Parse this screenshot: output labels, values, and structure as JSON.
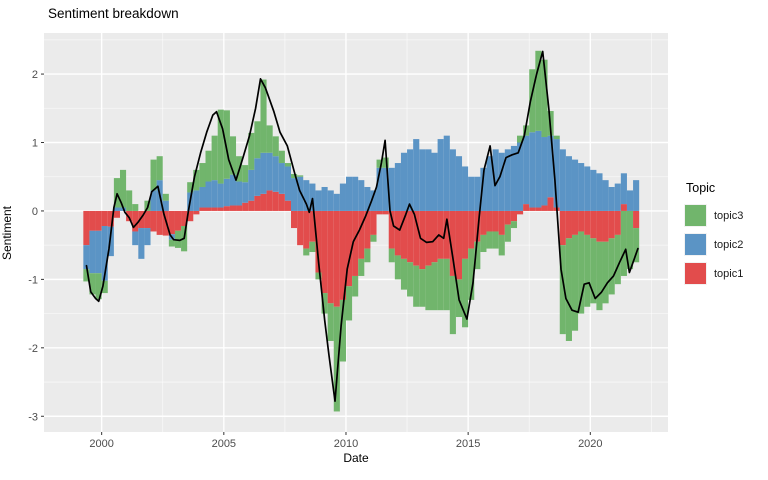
{
  "title": "Sentiment breakdown",
  "colors": {
    "panel_bg": "#EBEBEB",
    "grid": "#FFFFFF",
    "line": "#000000",
    "tick_text": "#4D4D4D",
    "tick_mark": "#333333",
    "topic1": "#E24C4C",
    "topic2": "#5B94C5",
    "topic3": "#71B56C"
  },
  "chart_data": {
    "type": "bar",
    "subtype": "stacked-bar-with-line-overlay",
    "title": "Sentiment breakdown",
    "xlabel": "Date",
    "ylabel": "Sentiment",
    "grid": true,
    "x_ticks": [
      "2000",
      "2005",
      "2010",
      "2015",
      "2020"
    ],
    "x_tick_values": [
      2000,
      2005,
      2010,
      2015,
      2020
    ],
    "x_minor_values": [
      2002.5,
      2007.5,
      2012.5,
      2017.5,
      2022.5
    ],
    "y_ticks": [
      "2",
      "1",
      "0",
      "-1",
      "-2",
      "-3"
    ],
    "y_tick_values": [
      2,
      1,
      0,
      -1,
      -2,
      -3
    ],
    "y_minor_values": [
      2.5,
      1.5,
      0.5,
      -0.5,
      -1.5,
      -2.5
    ],
    "x_range": [
      1997.64,
      2023.18
    ],
    "y_range": [
      -3.23,
      2.6
    ],
    "legend": {
      "title": "Topic",
      "position": "right",
      "items": [
        {
          "label": "topic3",
          "color": "#71B56C"
        },
        {
          "label": "topic2",
          "color": "#5B94C5"
        },
        {
          "label": "topic1",
          "color": "#E24C4C"
        }
      ]
    },
    "stack_order_from_zero": [
      "topic1",
      "topic2",
      "topic3"
    ],
    "bars": {
      "x_start": 1999.25,
      "step": 0.25,
      "topic1": [
        -0.5,
        -0.29,
        -0.29,
        -0.22,
        -0.23,
        -0.1,
        0.0,
        -0.15,
        -0.3,
        -0.25,
        -0.25,
        -0.3,
        -0.35,
        -0.36,
        -0.34,
        -0.29,
        -0.22,
        -0.15,
        -0.05,
        0.05,
        0.05,
        0.05,
        0.05,
        0.07,
        0.08,
        0.08,
        0.12,
        0.15,
        0.22,
        0.25,
        0.3,
        0.28,
        0.25,
        0.15,
        -0.25,
        -0.5,
        -0.55,
        -0.45,
        -0.9,
        -1.2,
        -1.35,
        -1.4,
        -1.3,
        -1.1,
        -0.95,
        -0.7,
        -0.55,
        -0.35,
        -0.05,
        -0.05,
        -0.55,
        -0.65,
        -0.7,
        -0.75,
        -0.8,
        -0.85,
        -0.8,
        -0.75,
        -0.7,
        -0.7,
        -0.95,
        -1.0,
        -0.7,
        -0.55,
        -0.45,
        -0.35,
        -0.3,
        -0.3,
        -0.35,
        -0.2,
        -0.15,
        -0.05,
        0.1,
        0.05,
        0.05,
        0.08,
        0.2,
        0.05,
        -0.5,
        -0.4,
        -0.35,
        -0.3,
        -0.35,
        -0.4,
        -0.45,
        -0.45,
        -0.4,
        -0.35,
        0.1,
        0.0,
        -0.25
      ],
      "topic2": [
        -0.35,
        -0.62,
        -0.62,
        -0.8,
        -0.43,
        0.05,
        0.05,
        0.0,
        -0.2,
        -0.45,
        -0.25,
        0.3,
        0.45,
        0.15,
        -0.08,
        0.0,
        0.0,
        0.27,
        0.3,
        0.3,
        0.38,
        0.4,
        0.35,
        0.4,
        0.45,
        0.35,
        0.3,
        0.45,
        0.55,
        0.6,
        0.55,
        0.52,
        0.45,
        0.5,
        0.48,
        0.5,
        0.45,
        0.4,
        0.3,
        0.35,
        0.3,
        0.25,
        0.4,
        0.5,
        0.5,
        0.45,
        0.35,
        0.3,
        0.63,
        0.63,
        0.63,
        0.7,
        0.85,
        0.9,
        1.05,
        0.9,
        0.9,
        0.85,
        1.05,
        1.1,
        0.9,
        0.8,
        0.65,
        0.5,
        0.5,
        0.63,
        0.8,
        0.9,
        0.85,
        0.9,
        0.95,
        1.0,
        1.0,
        1.1,
        1.12,
        1.0,
        0.9,
        1.0,
        0.9,
        0.8,
        0.75,
        0.7,
        0.65,
        0.6,
        0.55,
        0.45,
        0.35,
        0.4,
        0.45,
        0.3,
        0.45
      ],
      "topic3": [
        -0.18,
        -0.31,
        -0.38,
        -0.18,
        0.0,
        0.43,
        0.55,
        0.3,
        0.1,
        0.0,
        0.15,
        0.45,
        0.35,
        0.1,
        -0.1,
        -0.25,
        -0.37,
        0.15,
        0.3,
        0.35,
        0.45,
        0.65,
        1.08,
        1.0,
        0.56,
        0.37,
        0.25,
        0.54,
        0.54,
        1.07,
        0.4,
        0.29,
        0.18,
        0.05,
        0.06,
        0.02,
        -0.1,
        -0.15,
        -0.1,
        -0.3,
        -0.55,
        -1.53,
        -0.9,
        -0.5,
        -0.3,
        -0.25,
        -0.2,
        -0.1,
        0.12,
        0.15,
        -0.2,
        -0.35,
        -0.45,
        -0.5,
        -0.6,
        -0.55,
        -0.65,
        -0.7,
        -0.75,
        -0.75,
        -0.85,
        -0.55,
        -1.0,
        -0.75,
        -0.4,
        -0.25,
        -0.25,
        -0.25,
        -0.3,
        -0.25,
        -0.1,
        0.1,
        0.15,
        0.92,
        1.17,
        1.13,
        0.36,
        0.05,
        -1.3,
        -1.5,
        -1.4,
        -1.2,
        -1.05,
        -0.95,
        -1.0,
        -0.9,
        -0.82,
        -0.72,
        -0.95,
        -0.85,
        -0.5
      ]
    },
    "line": [
      [
        1999.38,
        -0.8
      ],
      [
        1999.55,
        -1.18
      ],
      [
        1999.75,
        -1.28
      ],
      [
        1999.88,
        -1.32
      ],
      [
        2000.05,
        -1.1
      ],
      [
        2000.3,
        -0.55
      ],
      [
        2000.5,
        0.05
      ],
      [
        2000.63,
        0.25
      ],
      [
        2000.8,
        0.12
      ],
      [
        2000.95,
        -0.02
      ],
      [
        2001.13,
        -0.1
      ],
      [
        2001.3,
        -0.24
      ],
      [
        2001.5,
        -0.16
      ],
      [
        2001.7,
        -0.06
      ],
      [
        2001.88,
        0.05
      ],
      [
        2002.05,
        0.28
      ],
      [
        2002.3,
        0.36
      ],
      [
        2002.55,
        -0.05
      ],
      [
        2002.8,
        -0.35
      ],
      [
        2002.95,
        -0.42
      ],
      [
        2003.2,
        -0.43
      ],
      [
        2003.38,
        -0.4
      ],
      [
        2003.55,
        0.0
      ],
      [
        2003.8,
        0.5
      ],
      [
        2004.05,
        0.85
      ],
      [
        2004.3,
        1.15
      ],
      [
        2004.55,
        1.4
      ],
      [
        2004.7,
        1.45
      ],
      [
        2004.95,
        1.2
      ],
      [
        2005.2,
        0.75
      ],
      [
        2005.5,
        0.45
      ],
      [
        2005.8,
        0.8
      ],
      [
        2006.05,
        1.1
      ],
      [
        2006.3,
        1.5
      ],
      [
        2006.5,
        1.93
      ],
      [
        2006.7,
        1.8
      ],
      [
        2007.05,
        1.45
      ],
      [
        2007.3,
        1.15
      ],
      [
        2007.6,
        0.95
      ],
      [
        2007.9,
        0.55
      ],
      [
        2008.1,
        0.3
      ],
      [
        2008.38,
        0.1
      ],
      [
        2008.5,
        -0.02
      ],
      [
        2008.63,
        0.18
      ],
      [
        2008.88,
        -0.75
      ],
      [
        2009.13,
        -1.6
      ],
      [
        2009.3,
        -2.1
      ],
      [
        2009.55,
        -2.78
      ],
      [
        2009.8,
        -1.68
      ],
      [
        2010.05,
        -0.85
      ],
      [
        2010.3,
        -0.45
      ],
      [
        2010.55,
        -0.28
      ],
      [
        2010.8,
        -0.08
      ],
      [
        2011.05,
        0.15
      ],
      [
        2011.25,
        0.35
      ],
      [
        2011.45,
        0.7
      ],
      [
        2011.6,
        1.03
      ],
      [
        2011.8,
        0.0
      ],
      [
        2011.95,
        -0.22
      ],
      [
        2012.2,
        -0.28
      ],
      [
        2012.45,
        -0.05
      ],
      [
        2012.6,
        0.1
      ],
      [
        2012.8,
        -0.05
      ],
      [
        2013.05,
        -0.4
      ],
      [
        2013.3,
        -0.46
      ],
      [
        2013.55,
        -0.45
      ],
      [
        2013.8,
        -0.35
      ],
      [
        2014.0,
        -0.4
      ],
      [
        2014.13,
        -0.12
      ],
      [
        2014.38,
        -0.7
      ],
      [
        2014.63,
        -1.3
      ],
      [
        2014.95,
        -1.58
      ],
      [
        2015.2,
        -1.05
      ],
      [
        2015.45,
        -0.1
      ],
      [
        2015.65,
        0.6
      ],
      [
        2015.9,
        0.95
      ],
      [
        2016.1,
        0.37
      ],
      [
        2016.3,
        0.5
      ],
      [
        2016.55,
        0.78
      ],
      [
        2016.8,
        0.82
      ],
      [
        2017.05,
        0.85
      ],
      [
        2017.3,
        1.1
      ],
      [
        2017.55,
        1.6
      ],
      [
        2017.8,
        2.0
      ],
      [
        2018.05,
        2.33
      ],
      [
        2018.3,
        1.5
      ],
      [
        2018.55,
        0.45
      ],
      [
        2018.8,
        -0.85
      ],
      [
        2019.0,
        -1.28
      ],
      [
        2019.25,
        -1.45
      ],
      [
        2019.5,
        -1.48
      ],
      [
        2019.75,
        -1.07
      ],
      [
        2019.95,
        -1.05
      ],
      [
        2020.2,
        -1.28
      ],
      [
        2020.45,
        -1.19
      ],
      [
        2020.7,
        -1.05
      ],
      [
        2020.95,
        -0.95
      ],
      [
        2021.2,
        -0.75
      ],
      [
        2021.45,
        -0.56
      ],
      [
        2021.6,
        -0.9
      ],
      [
        2021.8,
        -0.7
      ],
      [
        2021.95,
        -0.55
      ]
    ]
  }
}
